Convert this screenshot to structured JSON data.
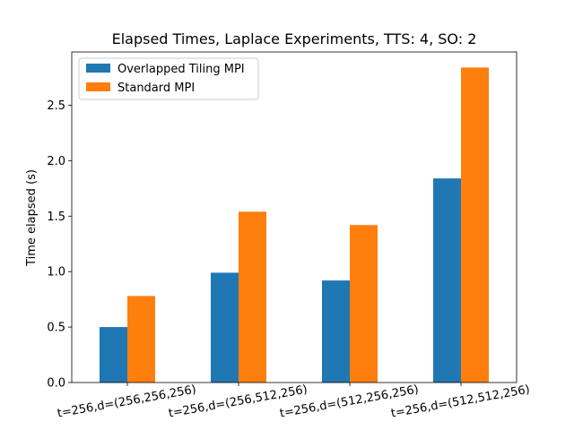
{
  "chart_data": {
    "type": "bar",
    "title": "Elapsed Times, Laplace Experiments, TTS: 4, SO: 2",
    "xlabel": "",
    "ylabel": "Time elapsed (s)",
    "categories": [
      "t=256,d=(256,256,256)",
      "t=256,d=(256,512,256)",
      "t=256,d=(512,256,256)",
      "t=256,d=(512,512,256)"
    ],
    "series": [
      {
        "name": "Overlapped Tiling MPI",
        "color": "#1f77b4",
        "values": [
          0.5,
          0.99,
          0.92,
          1.84
        ]
      },
      {
        "name": "Standard MPI",
        "color": "#ff7f0e",
        "values": [
          0.78,
          1.54,
          1.42,
          2.84
        ]
      }
    ],
    "ylim": [
      0,
      2.98
    ],
    "yticks": [
      0.0,
      0.5,
      1.0,
      1.5,
      2.0,
      2.5
    ],
    "ytick_labels": [
      "0.0",
      "0.5",
      "1.0",
      "1.5",
      "2.0",
      "2.5"
    ],
    "grid": false,
    "legend_position": "top-left"
  }
}
